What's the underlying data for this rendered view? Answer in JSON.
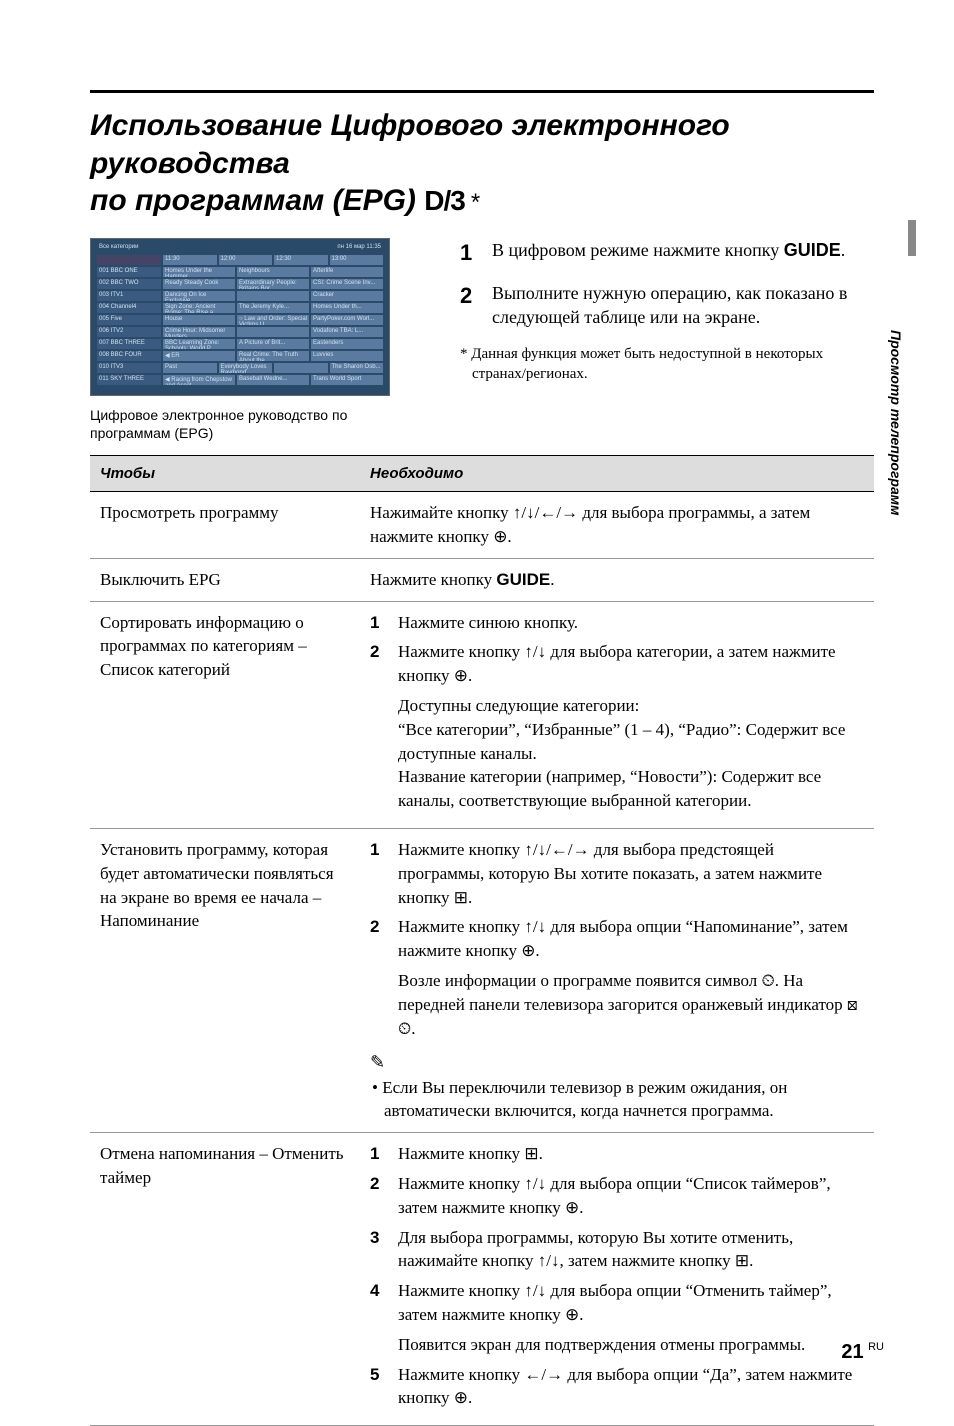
{
  "title_line1": "Использование Цифрового электронного руководства",
  "title_line2_prefix": "по программам (EPG) ",
  "dvb_logo": "D/3",
  "title_asterisk": "*",
  "epg_caption": "Цифровое электронное руководство по программам (EPG)",
  "epg_header_left": "Все категории",
  "epg_header_right": "пн 16 мар 11:35",
  "epg_time_cells": [
    "11:30",
    "12:00",
    "12:30",
    "13:00"
  ],
  "epg_rows": [
    {
      "ch": "001  BBC ONE",
      "cells": [
        "Homes Under the Hammer",
        "Neighbours",
        "Afterlife"
      ]
    },
    {
      "ch": "002  BBC TWO",
      "cells": [
        "Ready Steady Cook",
        "Extraordinary People: Britains Bor...",
        "CSI: Crime Scene Inv..."
      ]
    },
    {
      "ch": "003  ITV1",
      "cells": [
        "Dancing On Ice Exclusive",
        "",
        "Cracker"
      ]
    },
    {
      "ch": "004  Channel4",
      "cells": [
        "Sign Zone: Ancient Rome: The Rise a...",
        "The Jeremy Kyle...",
        "Homes Under th..."
      ]
    },
    {
      "ch": "005  Five",
      "cells": [
        "House",
        "○ Law and Order: Special Victims U...",
        "PartyPoker.com Worl..."
      ]
    },
    {
      "ch": "006  ITV2",
      "cells": [
        "Crime Hour: Midsomer Murders",
        "",
        "Vodafone TBA: L..."
      ]
    },
    {
      "ch": "007  BBC THREE",
      "cells": [
        "BBC Learning Zone: Schools: World P...",
        "A Picture of Brit...",
        "Eastenders"
      ]
    },
    {
      "ch": "008  BBC FOUR",
      "cells": [
        "◀ ER",
        "Real Crime: The Truth About the...",
        "Luvvies"
      ]
    },
    {
      "ch": "010  ITV3",
      "cells": [
        "Past",
        "Everybody Loves Raymond",
        "",
        "The Sharon Osb..."
      ]
    },
    {
      "ch": "011  SKY THREE",
      "cells": [
        "◀ Racing from Chepstow and Ascot",
        "Baseball Wedne...",
        "Trans World Sport"
      ]
    }
  ],
  "intro_steps": [
    {
      "n": "1",
      "t_parts": [
        "В цифровом режиме нажмите кнопку ",
        {
          "bold": "GUIDE"
        },
        "."
      ]
    },
    {
      "n": "2",
      "t_parts": [
        "Выполните нужную операцию, как показано в следующей таблице или на экране."
      ]
    }
  ],
  "footnote": "* Данная функция может быть недоступной в некоторых странах/регионах.",
  "side_tab": "Просмотр телепрограмм",
  "table_header_left": "Чтобы",
  "table_header_right": "Необходимо",
  "rows": [
    {
      "left": "Просмотреть программу",
      "right_plain": "Нажимайте кнопку ↑/↓/←/→ для выбора программы, а затем нажмите кнопку ⊕."
    },
    {
      "left": "Выключить EPG",
      "right_parts": [
        "Нажмите кнопку ",
        {
          "bold": "GUIDE"
        },
        "."
      ]
    },
    {
      "left": "Сортировать информацию о программах по категориям – Список категорий",
      "steps": [
        {
          "n": "1",
          "t": "Нажмите синюю кнопку."
        },
        {
          "n": "2",
          "t": "Нажмите кнопку ↑/↓ для выбора категории, а затем нажмите кнопку ⊕.",
          "after": "Доступны следующие категории:\n“Все категории”, “Избранные” (1 – 4), “Радио”: Содержит все доступные каналы.\nНазвание категории (например, “Новости”): Содержит все каналы, соответствующие выбранной категории."
        }
      ]
    },
    {
      "left": "Установить программу, которая будет автоматически появляться на экране во время ее начала – Напоминание",
      "steps": [
        {
          "n": "1",
          "t": "Нажмите кнопку ↑/↓/←/→ для выбора предстоящей программы, которую Вы хотите показать, а затем нажмите кнопку ⊞."
        },
        {
          "n": "2",
          "t": "Нажмите кнопку ↑/↓ для выбора опции “Напоминание”, затем нажмите кнопку ⊕.",
          "after": "Возле информации о программе появится символ ⏲. На передней панели телевизора загорится оранжевый индикатор ⊠ ⏲."
        }
      ],
      "note_icon": "✎",
      "note_bullet": "• Если Вы переключили телевизор в режим ожидания, он автоматически включится, когда начнется программа."
    },
    {
      "left": "Отмена напоминания – Отменить таймер",
      "steps": [
        {
          "n": "1",
          "t": "Нажмите кнопку ⊞."
        },
        {
          "n": "2",
          "t": "Нажмите кнопку ↑/↓ для выбора опции “Список таймеров”, затем нажмите кнопку ⊕."
        },
        {
          "n": "3",
          "t": "Для выбора программы, которую Вы хотите отменить, нажимайте кнопку ↑/↓, затем нажмите кнопку ⊞."
        },
        {
          "n": "4",
          "t": "Нажмите кнопку ↑/↓ для выбора опции “Отменить таймер”, затем нажмите кнопку ⊕.",
          "after": "Появится экран для подтверждения отмены программы."
        },
        {
          "n": "5",
          "t": "Нажмите кнопку ←/→ для выбора опции “Да”, затем нажмите кнопку ⊕."
        }
      ]
    }
  ],
  "page_number_main": "21",
  "page_number_suffix": "RU"
}
